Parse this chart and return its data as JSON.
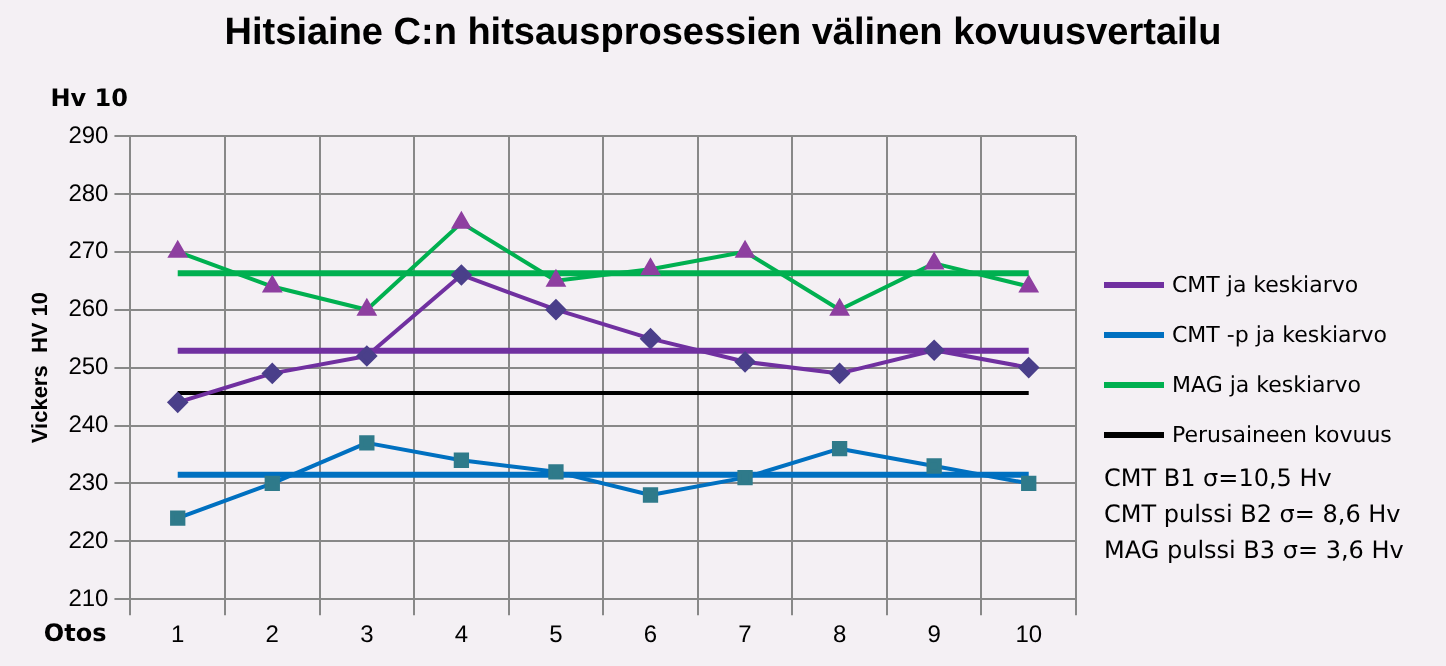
{
  "chart_data": {
    "type": "line",
    "title": "Hitsiaine C:n hitsausprosessien välinen kovuusvertailu",
    "xlabel": "Otos",
    "ylabel": "Vickers  HV 10",
    "categories": [
      "1",
      "2",
      "3",
      "4",
      "5",
      "6",
      "7",
      "8",
      "9",
      "10"
    ],
    "series": [
      {
        "name": "CMT  ja keskiarvo",
        "color": "#7030a0",
        "marker": "diamond",
        "values": [
          244,
          249,
          252,
          266,
          260,
          255,
          251,
          249,
          253,
          250
        ]
      },
      {
        "color": "#7030a0",
        "marker": "none",
        "values": [
          252.9,
          252.9,
          252.9,
          252.9,
          252.9,
          252.9,
          252.9,
          252.9,
          252.9,
          252.9
        ]
      },
      {
        "name": "CMT -p  ja keskiarvo",
        "color": "#0070c0",
        "marker": "square",
        "values": [
          224,
          230,
          237,
          234,
          232,
          228,
          231,
          236,
          233,
          230
        ]
      },
      {
        "color": "#0070c0",
        "marker": "none",
        "values": [
          231.5,
          231.5,
          231.5,
          231.5,
          231.5,
          231.5,
          231.5,
          231.5,
          231.5,
          231.5
        ]
      },
      {
        "name": "MAG  ja keskiarvo",
        "color": "#00b050",
        "marker": "triangle",
        "values": [
          270,
          264,
          260,
          275,
          265,
          267,
          270,
          260,
          268,
          264
        ]
      },
      {
        "color": "#00b050",
        "marker": "none",
        "values": [
          266.3,
          266.3,
          266.3,
          266.3,
          266.3,
          266.3,
          266.3,
          266.3,
          266.3,
          266.3
        ]
      },
      {
        "name": "Perusaineen kovuus",
        "color": "#000000",
        "marker": "none",
        "values": [
          245.6,
          245.6,
          245.6,
          245.6,
          245.6,
          245.6,
          245.6,
          245.6,
          245.6,
          245.6
        ]
      }
    ],
    "ylim": [
      210,
      290
    ],
    "yticks": [
      210,
      220,
      230,
      240,
      250,
      260,
      270,
      280,
      290
    ],
    "grid": true,
    "legend": "right",
    "annotations": [
      "Hv 10",
      "CMT B1 σ=10,5 Hv",
      "CMT pulssi B2 σ= 8,6 Hv",
      "MAG pulssi B3 σ= 3,6 Hv"
    ]
  }
}
